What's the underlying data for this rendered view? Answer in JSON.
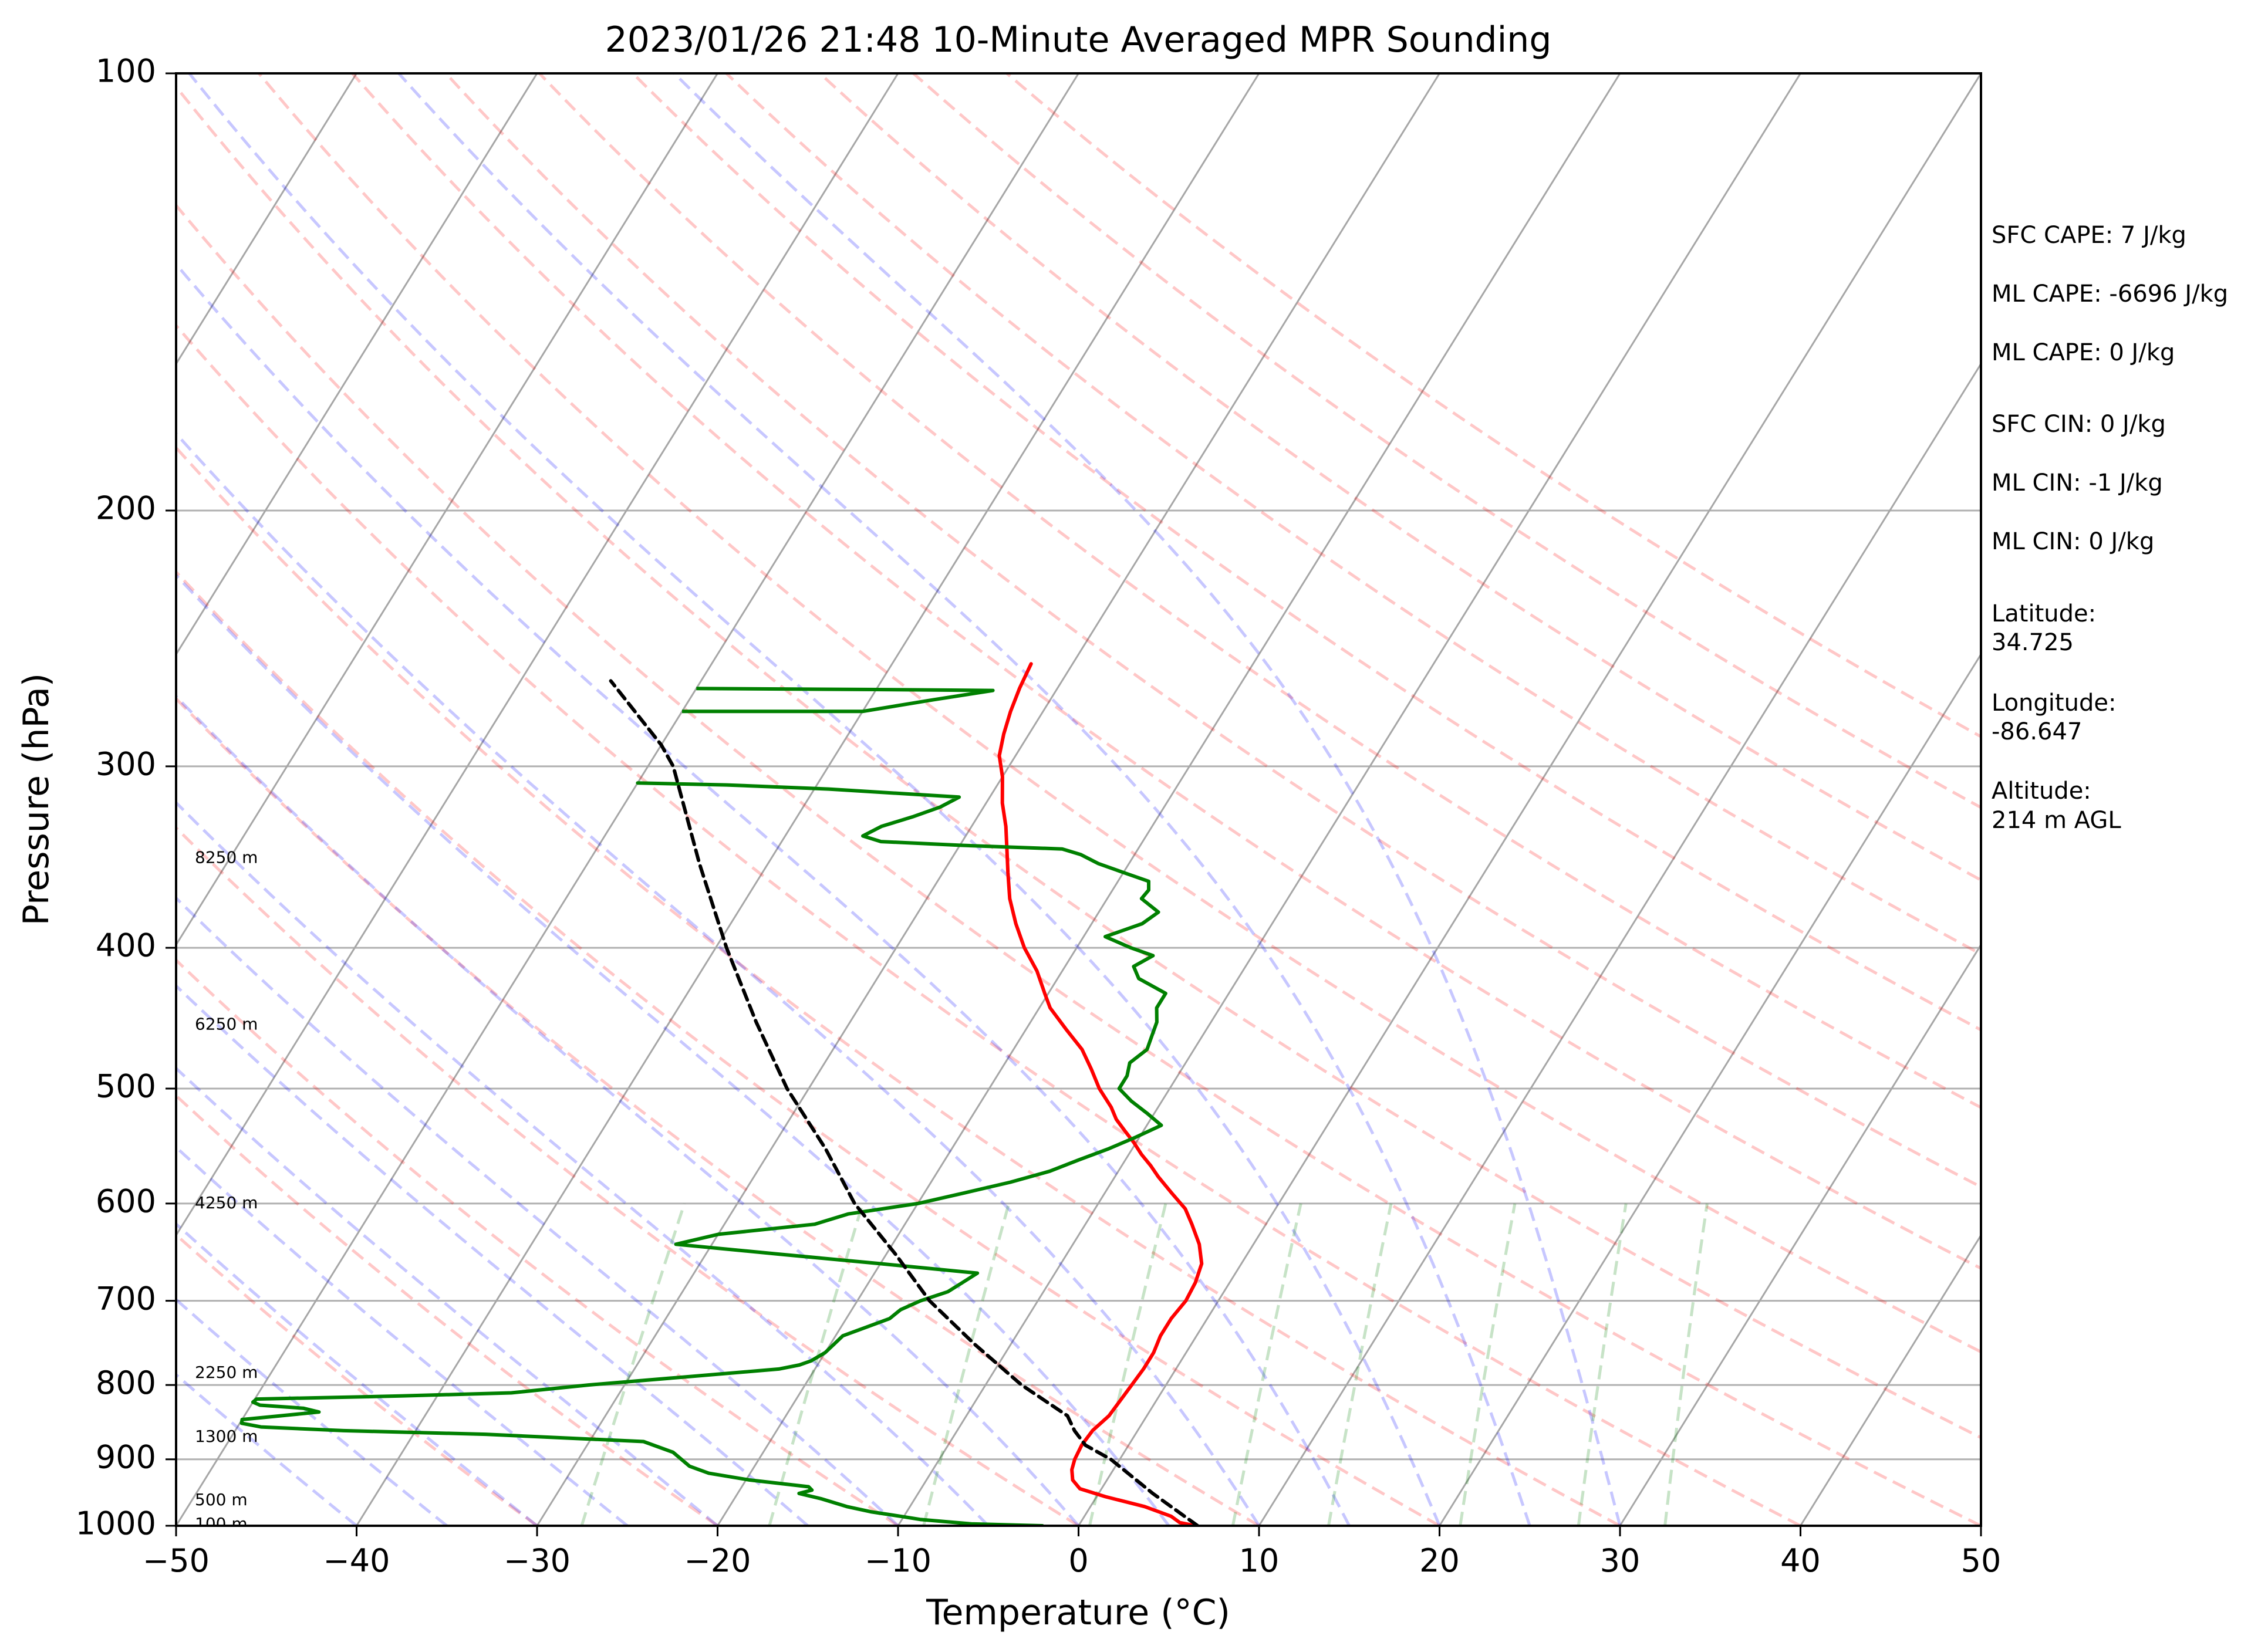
{
  "chart_data": {
    "type": "line",
    "subtype": "skew-t log-p sounding",
    "title": "2023/01/26 21:48 10-Minute Averaged MPR Sounding",
    "xlabel": "Temperature (°C)",
    "ylabel": "Pressure (hPa)",
    "xlim": [
      -50,
      50
    ],
    "ylim": [
      1000,
      100
    ],
    "y_scale": "log",
    "x_ticks": [
      "−50",
      "−40",
      "−30",
      "−20",
      "−10",
      "0",
      "10",
      "20",
      "30",
      "40",
      "50"
    ],
    "y_ticks": [
      {
        "p": 100,
        "label": "100"
      },
      {
        "p": 200,
        "label": "200"
      },
      {
        "p": 300,
        "label": "300"
      },
      {
        "p": 400,
        "label": "400"
      },
      {
        "p": 500,
        "label": "500"
      },
      {
        "p": 600,
        "label": "600"
      },
      {
        "p": 700,
        "label": "700"
      },
      {
        "p": 800,
        "label": "800"
      },
      {
        "p": 900,
        "label": "900"
      },
      {
        "p": 1000,
        "label": "1000"
      }
    ],
    "grid": true,
    "skew_per_decade": 50,
    "dry_adiabats_theta_c": [
      -30,
      -20,
      -10,
      0,
      10,
      20,
      30,
      40,
      50,
      60,
      70,
      80,
      90,
      100,
      110,
      120,
      130,
      140,
      150
    ],
    "moist_adiabats_t0_c": [
      -40,
      -35,
      -30,
      -25,
      -20,
      -15,
      -10,
      -5,
      0,
      5,
      10,
      15,
      20,
      25,
      30
    ],
    "mixing_ratio_lines_gkg": [
      0.4,
      1,
      2,
      4,
      7,
      10,
      16,
      24,
      32
    ],
    "isotherms_c": [
      -150,
      -140,
      -130,
      -120,
      -110,
      -100,
      -90,
      -80,
      -70,
      -60,
      -50,
      -40,
      -30,
      -20,
      -10,
      0,
      10,
      20,
      30,
      40,
      50
    ],
    "series": [
      {
        "name": "",
        "color": "#ff0000",
        "points": [
          [
            6.5,
            1000
          ],
          [
            5.5,
            995
          ],
          [
            4.8,
            985
          ],
          [
            3.0,
            970
          ],
          [
            0.5,
            955
          ],
          [
            -1.2,
            943
          ],
          [
            -1.9,
            930
          ],
          [
            -2.3,
            915
          ],
          [
            -2.5,
            900
          ],
          [
            -2.6,
            880
          ],
          [
            -2.5,
            860
          ],
          [
            -2.1,
            840
          ],
          [
            -2.0,
            820
          ],
          [
            -1.9,
            800
          ],
          [
            -1.8,
            780
          ],
          [
            -1.8,
            760
          ],
          [
            -2.0,
            740
          ],
          [
            -2.0,
            720
          ],
          [
            -1.8,
            700
          ],
          [
            -1.9,
            680
          ],
          [
            -2.2,
            660
          ],
          [
            -3.0,
            640
          ],
          [
            -4.1,
            620
          ],
          [
            -5.0,
            605
          ],
          [
            -6.3,
            590
          ],
          [
            -7.6,
            575
          ],
          [
            -8.4,
            565
          ],
          [
            -9.3,
            555
          ],
          [
            -10.1,
            545
          ],
          [
            -11.0,
            535
          ],
          [
            -11.9,
            525
          ],
          [
            -12.6,
            515
          ],
          [
            -13.9,
            500
          ],
          [
            -15.0,
            485
          ],
          [
            -16.2,
            470
          ],
          [
            -17.8,
            455
          ],
          [
            -19.4,
            440
          ],
          [
            -20.2,
            430
          ],
          [
            -21.4,
            415
          ],
          [
            -22.9,
            400
          ],
          [
            -24.2,
            385
          ],
          [
            -25.4,
            370
          ],
          [
            -26.4,
            355
          ],
          [
            -27.2,
            343
          ],
          [
            -28.1,
            330
          ],
          [
            -29.1,
            318
          ],
          [
            -30.0,
            305
          ],
          [
            -30.9,
            295
          ],
          [
            -31.4,
            285
          ],
          [
            -31.8,
            275
          ],
          [
            -32.1,
            265
          ],
          [
            -32.3,
            255
          ]
        ]
      },
      {
        "name": "",
        "color": "#008000",
        "points": [
          [
            -2.0,
            1000
          ],
          [
            -6.0,
            997
          ],
          [
            -9.0,
            990
          ],
          [
            -10.2,
            985
          ],
          [
            -12.0,
            978
          ],
          [
            -13.5,
            970
          ],
          [
            -15.2,
            958
          ],
          [
            -16.6,
            950
          ],
          [
            -16.0,
            945
          ],
          [
            -16.3,
            940
          ],
          [
            -19.8,
            930
          ],
          [
            -22.3,
            920
          ],
          [
            -23.6,
            910
          ],
          [
            -25.0,
            890
          ],
          [
            -27.0,
            875
          ],
          [
            -36.0,
            865
          ],
          [
            -44.0,
            860
          ],
          [
            -48.7,
            855
          ],
          [
            -49.9,
            850
          ],
          [
            -50.0,
            845
          ],
          [
            -48.0,
            840
          ],
          [
            -46.0,
            835
          ],
          [
            -47.0,
            830
          ],
          [
            -49.5,
            826
          ],
          [
            -50.0,
            822
          ],
          [
            -49.9,
            818
          ],
          [
            -42.0,
            814
          ],
          [
            -36.0,
            810
          ],
          [
            -32.0,
            800
          ],
          [
            -27.0,
            790
          ],
          [
            -22.0,
            780
          ],
          [
            -21.0,
            775
          ],
          [
            -20.5,
            770
          ],
          [
            -20.0,
            760
          ],
          [
            -19.8,
            750
          ],
          [
            -19.6,
            740
          ],
          [
            -18.6,
            730
          ],
          [
            -17.6,
            720
          ],
          [
            -17.3,
            710
          ],
          [
            -16.5,
            700
          ],
          [
            -15.3,
            690
          ],
          [
            -14.8,
            680
          ],
          [
            -14.3,
            670
          ],
          [
            -20.0,
            660
          ],
          [
            -26.0,
            650
          ],
          [
            -32.0,
            640
          ],
          [
            -30.0,
            630
          ],
          [
            -25.0,
            620
          ],
          [
            -23.5,
            610
          ],
          [
            -20.0,
            600
          ],
          [
            -17.8,
            590
          ],
          [
            -15.6,
            580
          ],
          [
            -13.8,
            570
          ],
          [
            -12.6,
            560
          ],
          [
            -11.3,
            550
          ],
          [
            -10.2,
            540
          ],
          [
            -9.2,
            530
          ],
          [
            -10.4,
            520
          ],
          [
            -11.7,
            510
          ],
          [
            -12.8,
            500
          ],
          [
            -12.8,
            490
          ],
          [
            -13.1,
            480
          ],
          [
            -12.6,
            470
          ],
          [
            -12.8,
            460
          ],
          [
            -13.0,
            450
          ],
          [
            -13.5,
            440
          ],
          [
            -13.5,
            430
          ],
          [
            -15.5,
            420
          ],
          [
            -16.2,
            412
          ],
          [
            -15.5,
            405
          ],
          [
            -17.0,
            400
          ],
          [
            -18.8,
            393
          ],
          [
            -17.2,
            385
          ],
          [
            -16.7,
            378
          ],
          [
            -18.1,
            370
          ],
          [
            -18.0,
            365
          ],
          [
            -18.3,
            360
          ],
          [
            -20.0,
            355
          ],
          [
            -21.7,
            350
          ],
          [
            -23.0,
            345
          ],
          [
            -24.2,
            342
          ],
          [
            -30.0,
            340
          ],
          [
            -34.5,
            338
          ],
          [
            -35.7,
            335
          ],
          [
            -35.0,
            330
          ],
          [
            -33.6,
            325
          ],
          [
            -32.4,
            320
          ],
          [
            -31.7,
            315
          ],
          [
            -39.2,
            311
          ],
          [
            -45.0,
            309
          ],
          [
            -50.0,
            308
          ]
        ],
        "upper_segment": [
          [
            -50.0,
            275
          ],
          [
            -40.0,
            275
          ],
          [
            -36.5,
            270
          ],
          [
            -33.5,
            266
          ],
          [
            -40.0,
            265.6
          ],
          [
            -50.0,
            265.2
          ]
        ]
      },
      {
        "name": "",
        "color": "#000000",
        "style": "dashed",
        "points": [
          [
            6.6,
            1000
          ],
          [
            3.0,
            950
          ],
          [
            -0.5,
            900
          ],
          [
            -2.4,
            880
          ],
          [
            -3.5,
            860
          ],
          [
            -4.4,
            840
          ],
          [
            -8.0,
            800
          ],
          [
            -12.0,
            750
          ],
          [
            -16.0,
            700
          ],
          [
            -19.5,
            650
          ],
          [
            -23.5,
            600
          ],
          [
            -27.0,
            550
          ],
          [
            -31.2,
            500
          ],
          [
            -35.2,
            450
          ],
          [
            -39.4,
            400
          ],
          [
            -43.8,
            350
          ],
          [
            -48.6,
            300
          ],
          [
            -50.0,
            290
          ],
          [
            -55.0,
            262
          ]
        ]
      }
    ],
    "height_markers": [
      {
        "label": "8250 m",
        "p": 347
      },
      {
        "label": "6250 m",
        "p": 452
      },
      {
        "label": "4250 m",
        "p": 600
      },
      {
        "label": "2250 m",
        "p": 785
      },
      {
        "label": "1300 m",
        "p": 869
      },
      {
        "label": "500 m",
        "p": 961
      },
      {
        "label": "100 m",
        "p": 998
      }
    ],
    "stats_panel": [
      "SFC CAPE: 7 J/kg",
      "ML CAPE: -6696 J/kg",
      "ML CAPE: 0 J/kg",
      "SFC CIN: 0 J/kg",
      "ML CIN: -1 J/kg",
      "ML CIN: 0 J/kg",
      "Latitude:",
      "34.725",
      "Longitude:",
      "-86.647",
      "Altitude:",
      "214 m AGL"
    ]
  }
}
